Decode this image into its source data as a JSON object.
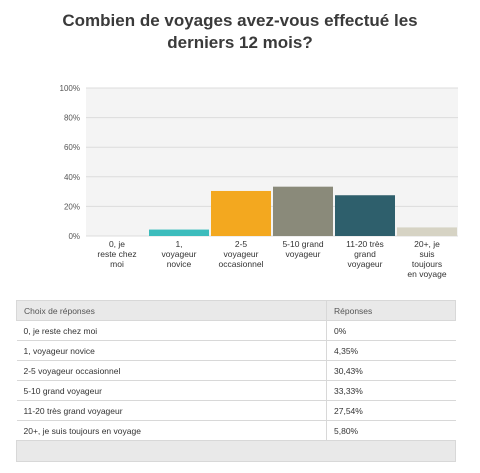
{
  "chart_data": {
    "type": "bar",
    "title_lines": [
      "Combien de voyages avez-vous effectué les",
      "derniers 12 mois?"
    ],
    "categories": [
      [
        "0, je",
        "reste chez",
        "moi"
      ],
      [
        "1,",
        "voyageur",
        "novice"
      ],
      [
        "2-5",
        "voyageur",
        "occasionnel"
      ],
      [
        "5-10 grand",
        "voyageur"
      ],
      [
        "11-20 très",
        "grand",
        "voyageur"
      ],
      [
        "20+, je",
        "suis",
        "toujours",
        "en voyage"
      ]
    ],
    "values": [
      0,
      4.35,
      30.43,
      33.33,
      27.54,
      5.8
    ],
    "colors": [
      "#3cbcbc",
      "#3cbcbc",
      "#f3a81f",
      "#8a8a7a",
      "#2e5f6c",
      "#d6d3c4"
    ],
    "yticks": [
      "0%",
      "20%",
      "40%",
      "60%",
      "80%",
      "100%"
    ],
    "ylim": [
      0,
      100
    ],
    "grid": true
  },
  "table": {
    "headers": [
      "Choix de réponses",
      "Réponses"
    ],
    "rows": [
      [
        "0, je reste chez moi",
        "0%"
      ],
      [
        "1, voyageur novice",
        "4,35%"
      ],
      [
        "2-5 voyageur occasionnel",
        "30,43%"
      ],
      [
        "5-10 grand voyageur",
        "33,33%"
      ],
      [
        "11-20 très grand voyageur",
        "27,54%"
      ],
      [
        "20+, je suis toujours en voyage",
        "5,80%"
      ]
    ]
  }
}
